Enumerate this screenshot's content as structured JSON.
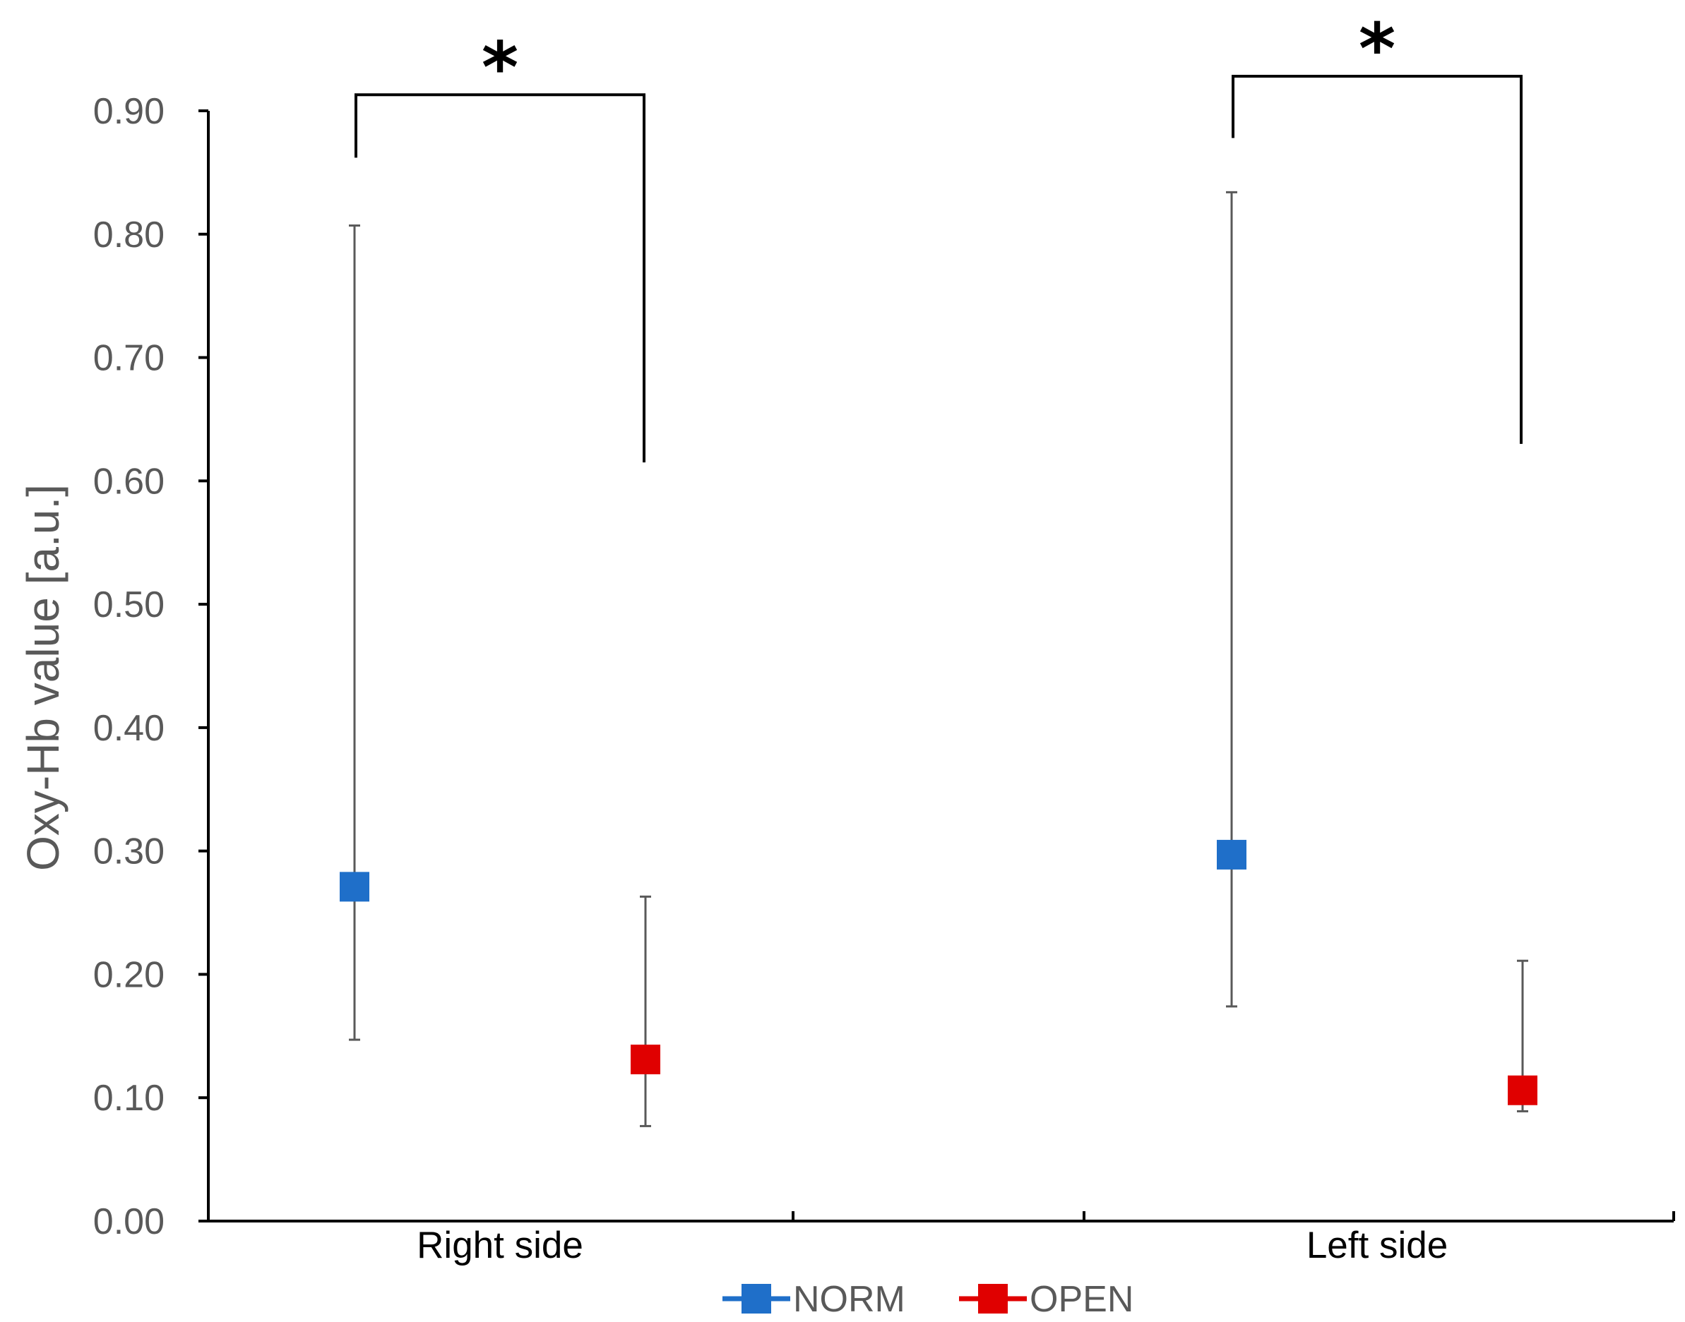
{
  "chart_data": {
    "type": "scatter",
    "categories": [
      "Right side",
      "Left side"
    ],
    "ylabel": "Oxy-Hb value [a.u.]",
    "ylim": [
      0,
      0.9
    ],
    "yticks": [
      "0.00",
      "0.10",
      "0.20",
      "0.30",
      "0.40",
      "0.50",
      "0.60",
      "0.70",
      "0.80",
      "0.90"
    ],
    "grid": false,
    "legend": "bottom",
    "series": [
      {
        "name": "NORM",
        "color": "#1f6fc9",
        "values": [
          0.271,
          0.297
        ],
        "error_low": [
          0.147,
          0.174
        ],
        "error_high": [
          0.807,
          0.834
        ]
      },
      {
        "name": "OPEN",
        "color": "#e00000",
        "values": [
          0.131,
          0.106
        ],
        "error_low": [
          0.077,
          0.089
        ],
        "error_high": [
          0.263,
          0.211
        ]
      }
    ],
    "annotations": [
      {
        "text": "*",
        "category": "Right side",
        "bracket_top": 0.913,
        "left_end": 0.862,
        "right_end": 0.615
      },
      {
        "text": "*",
        "category": "Left side",
        "bracket_top": 0.928,
        "left_end": 0.878,
        "right_end": 0.63
      }
    ]
  }
}
